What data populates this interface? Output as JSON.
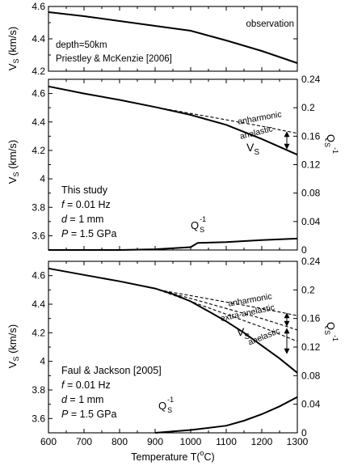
{
  "chart_data": [
    {
      "type": "line",
      "panel": "observation",
      "xlim": [
        600,
        1300
      ],
      "ylim": [
        4.2,
        4.6
      ],
      "yticks": [
        "4.6",
        "4.4",
        "4.2"
      ],
      "ylabel_main": "V",
      "ylabel_sub": "S",
      "ylabel_tail": " (km/s)",
      "series": [
        {
          "name": "observation",
          "x": [
            600,
            700,
            800,
            900,
            1000,
            1100,
            1200,
            1300
          ],
          "y": [
            4.565,
            4.54,
            4.51,
            4.48,
            4.45,
            4.39,
            4.325,
            4.25
          ]
        }
      ],
      "annotations": [
        "observation",
        "depth=50km",
        "Priestley & McKenzie [2006]"
      ]
    },
    {
      "type": "line",
      "panel": "this-study",
      "xlim": [
        600,
        1300
      ],
      "ylim": [
        3.5,
        4.7
      ],
      "y2lim": [
        0,
        0.24
      ],
      "yticks": [
        "4.6",
        "4.4",
        "4.2",
        "4",
        "3.8",
        "3.6"
      ],
      "y2ticks": [
        "0.24",
        "0.2",
        "0.16",
        "0.12",
        "0.08",
        "0.04",
        "0"
      ],
      "ylabel_main": "V",
      "ylabel_sub": "S",
      "ylabel_tail": " (km/s)",
      "y2label_main": "Q",
      "y2label_sub": "S",
      "y2label_sup": "-1",
      "series": [
        {
          "name": "anharmonic",
          "style": "dashed",
          "x": [
            910,
            1000,
            1100,
            1200,
            1300
          ],
          "y": [
            4.5,
            4.46,
            4.415,
            4.37,
            4.32
          ]
        },
        {
          "name": "V_S",
          "style": "solid",
          "x": [
            600,
            700,
            800,
            900,
            1000,
            1100,
            1200,
            1300
          ],
          "y": [
            4.65,
            4.6,
            4.555,
            4.505,
            4.45,
            4.38,
            4.28,
            4.17
          ]
        },
        {
          "name": "Q_S^-1",
          "style": "solid",
          "axis": "right",
          "x": [
            600,
            800,
            900,
            1000,
            1020,
            1100,
            1200,
            1300
          ],
          "y": [
            0,
            0,
            0.001,
            0.004,
            0.01,
            0.011,
            0.014,
            0.016
          ]
        }
      ],
      "annotations": [
        "anharmonic",
        "anelastic",
        "V",
        "S",
        "Q",
        "S",
        "-1",
        "This study",
        "f",
        " = 0.01 Hz",
        "d",
        " = 1 mm",
        "P",
        " = 1.5 GPa"
      ]
    },
    {
      "type": "line",
      "panel": "faul-jackson",
      "xlim": [
        600,
        1300
      ],
      "ylim": [
        3.5,
        4.7
      ],
      "y2lim": [
        0,
        0.24
      ],
      "yticks": [
        "4.6",
        "4.4",
        "4.2",
        "4",
        "3.8",
        "3.6"
      ],
      "y2ticks": [
        "0.24",
        "0.2",
        "0.16",
        "0.12",
        "0.08",
        "0.04",
        "0"
      ],
      "xticks": [
        "600",
        "700",
        "800",
        "900",
        "1000",
        "1100",
        "1200",
        "1300"
      ],
      "xlabel": "Temperature T(",
      "xlabel_sup": "o",
      "xlabel_tail": "C)",
      "ylabel_main": "V",
      "ylabel_sub": "S",
      "ylabel_tail": " (km/s)",
      "y2label_main": "Q",
      "y2label_sub": "S",
      "y2label_sup": "-1",
      "series": [
        {
          "name": "anharmonic",
          "style": "dashed",
          "x": [
            910,
            1000,
            1100,
            1200,
            1300
          ],
          "y": [
            4.5,
            4.46,
            4.415,
            4.37,
            4.32
          ]
        },
        {
          "name": "extra-anelastic",
          "style": "dashed",
          "x": [
            910,
            1000,
            1100,
            1200,
            1300
          ],
          "y": [
            4.5,
            4.44,
            4.37,
            4.3,
            4.22
          ]
        },
        {
          "name": "anelastic",
          "style": "dashed",
          "x": [
            910,
            1000,
            1100,
            1200,
            1300
          ],
          "y": [
            4.5,
            4.42,
            4.33,
            4.24,
            4.14
          ]
        },
        {
          "name": "V_S",
          "style": "solid",
          "x": [
            600,
            700,
            800,
            900,
            950,
            1000,
            1050,
            1100,
            1150,
            1200,
            1250,
            1300
          ],
          "y": [
            4.65,
            4.605,
            4.56,
            4.51,
            4.47,
            4.42,
            4.35,
            4.28,
            4.2,
            4.11,
            4.02,
            3.92
          ]
        },
        {
          "name": "Q_S^-1",
          "style": "solid",
          "axis": "right",
          "x": [
            900,
            1000,
            1100,
            1150,
            1200,
            1250,
            1300
          ],
          "y": [
            0,
            0.004,
            0.01,
            0.017,
            0.026,
            0.037,
            0.05
          ]
        }
      ],
      "annotations": [
        "anharmonic",
        "extra-anelastic",
        "anelastic",
        "V",
        "S",
        "Q",
        "S",
        "-1",
        "Faul & Jackson [2005]",
        "f",
        " = 0.01 Hz",
        "d",
        " = 1 mm",
        "P",
        " = 1.5 GPa"
      ]
    }
  ]
}
